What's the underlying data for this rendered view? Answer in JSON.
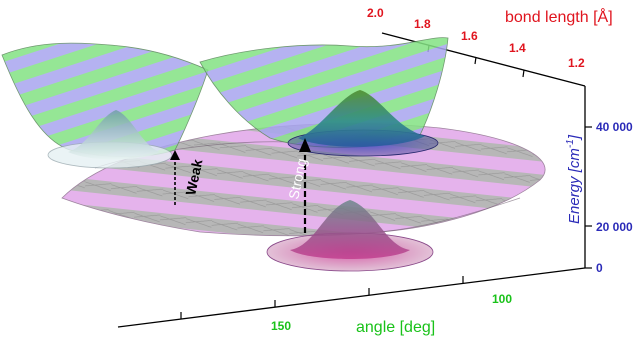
{
  "figure": {
    "bond_axis": {
      "title": "bond length [Å]",
      "ticks": [
        "2.0",
        "1.8",
        "1.6",
        "1.4",
        "1.2"
      ],
      "color": "#e0141e"
    },
    "energy_axis": {
      "title": "Energy [cm",
      "title_sup": "-1",
      "title_end": "]",
      "ticks": [
        "40 000",
        "20 000",
        "0"
      ],
      "color": "#2b2bb8"
    },
    "angle_axis": {
      "title": "angle [deg]",
      "ticks": [
        "150",
        "100"
      ],
      "color": "#19c219"
    },
    "annotations": {
      "weak": "Weak",
      "strong": "Strong"
    },
    "surfaces": {
      "upper_colors": [
        "#86e886",
        "#a6a6f0"
      ],
      "lower_colors": [
        "#dfa0e6",
        "#b9b9b9"
      ],
      "wavepacket_lower": "#c03c8c",
      "wavepacket_upper": "#2e6fa6"
    }
  }
}
